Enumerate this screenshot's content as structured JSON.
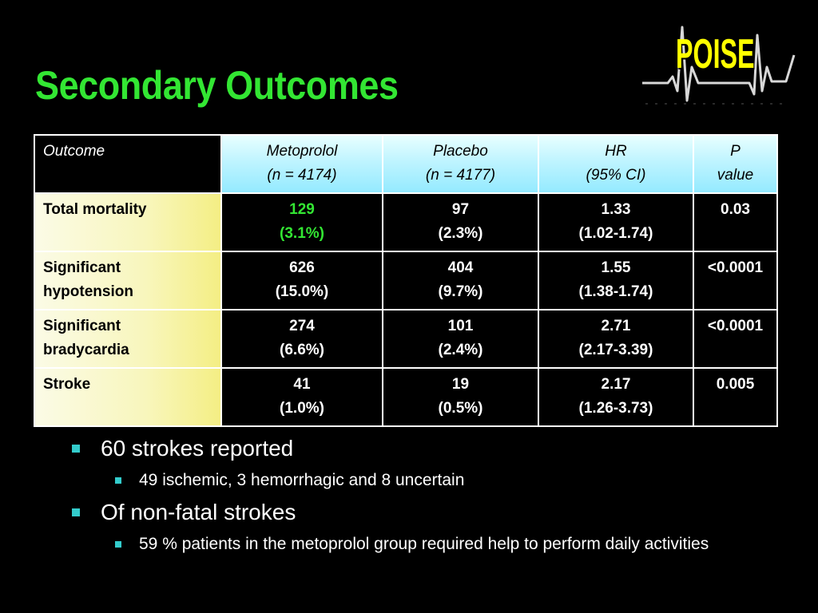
{
  "slide": {
    "title": "Secondary Outcomes",
    "logo_text": "POISE"
  },
  "table": {
    "headers": [
      {
        "line1": "Outcome",
        "line2": ""
      },
      {
        "line1": "Metoprolol",
        "line2": "(n = 4174)"
      },
      {
        "line1": "Placebo",
        "line2": "(n = 4177)"
      },
      {
        "line1": "HR",
        "line2": "(95% CI)"
      },
      {
        "line1": "P",
        "line2": "value"
      }
    ],
    "rows": [
      {
        "outcome": [
          "Total mortality",
          ""
        ],
        "metoprolol": [
          "129",
          "(3.1%)"
        ],
        "placebo": [
          "97",
          "(2.3%)"
        ],
        "hr": [
          "1.33",
          "(1.02-1.74)"
        ],
        "p": "0.03"
      },
      {
        "outcome": [
          "Significant",
          "hypotension"
        ],
        "metoprolol": [
          "626",
          "(15.0%)"
        ],
        "placebo": [
          "404",
          "(9.7%)"
        ],
        "hr": [
          "1.55",
          "(1.38-1.74)"
        ],
        "p": "<0.0001"
      },
      {
        "outcome": [
          "Significant",
          "bradycardia"
        ],
        "metoprolol": [
          "274",
          "(6.6%)"
        ],
        "placebo": [
          "101",
          "(2.4%)"
        ],
        "hr": [
          "2.71",
          "(2.17-3.39)"
        ],
        "p": "<0.0001"
      },
      {
        "outcome": [
          "Stroke",
          ""
        ],
        "metoprolol": [
          "41",
          "(1.0%)"
        ],
        "placebo": [
          "19",
          "(0.5%)"
        ],
        "hr": [
          "2.17",
          "(1.26-3.73)"
        ],
        "p": "0.005"
      }
    ]
  },
  "bullets": [
    {
      "text": "60 strokes reported",
      "sub": [
        "49 ischemic, 3 hemorrhagic and 8 uncertain"
      ]
    },
    {
      "text": "Of non-fatal strokes",
      "sub": [
        "59 % patients in the metoprolol group required help to perform daily activities"
      ]
    }
  ],
  "colors": {
    "background": "#000000",
    "title": "#33e633",
    "highlight": "#33e633",
    "bullet": "#33cccc",
    "logo": "#ffff00"
  }
}
